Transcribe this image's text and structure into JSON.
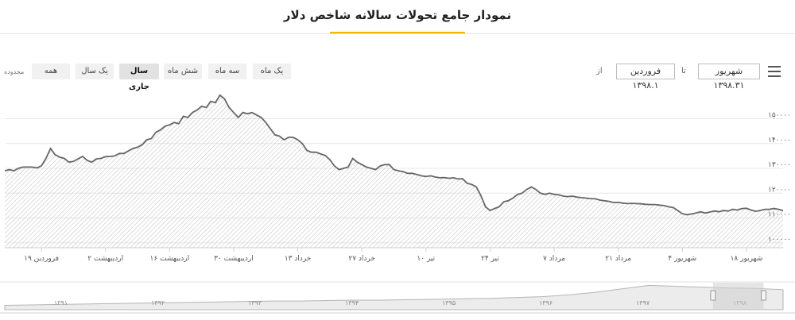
{
  "header": {
    "title": "نمودار جامع تحولات سالانه شاخص دلار"
  },
  "toolbar": {
    "menu_icon": "hamburger-menu-icon",
    "to_date": "شهریور ۱۳۹۸.۳۱",
    "to_sep": "تا",
    "from_date": "فروردین ۱۳۹۸.۱",
    "from_sep": "از",
    "range_label": "محدوده",
    "range_buttons": [
      "یک ماه",
      "سه ماه",
      "شش ماه",
      "سال جاری",
      "یک سال",
      "همه"
    ],
    "active_range": "سال جاری"
  },
  "colors": {
    "line": "#666666",
    "accent": "#f5b400",
    "grid": "#e8e8e8",
    "navigator_mask": "#cfcfcf"
  },
  "chart_data": {
    "type": "area",
    "title": "",
    "xlabel": "",
    "ylabel": "",
    "ylim": [
      98000,
      162000
    ],
    "y_ticks": [
      100000,
      110000,
      120000,
      130000,
      140000,
      150000
    ],
    "y_tick_labels": [
      "۱۰۰۰۰۰",
      "۱۱۰۰۰۰",
      "۱۲۰۰۰۰",
      "۱۳۰۰۰۰",
      "۱۴۰۰۰۰",
      "۱۵۰۰۰۰"
    ],
    "x_tick_labels": [
      "فروردین ۱۹",
      "اردیبهشت ۲",
      "اردیبهشت ۱۶",
      "اردیبهشت ۳۰",
      "خرداد ۱۳",
      "خرداد ۲۷",
      "تیر ۱۰",
      "تیر ۲۴",
      "مرداد ۷",
      "مرداد ۲۱",
      "شهریور ۴",
      "شهریور ۱۸"
    ],
    "x_tick_index": [
      8,
      22,
      36,
      50,
      64,
      78,
      92,
      106,
      120,
      134,
      148,
      162
    ],
    "grid": true,
    "legend": "none",
    "series": [
      {
        "values": [
          129000,
          129500,
          129000,
          130000,
          130500,
          130500,
          130500,
          130200,
          131000,
          134000,
          138000,
          135500,
          134500,
          134000,
          132500,
          132800,
          133800,
          134800,
          133200,
          132500,
          133800,
          134000,
          134700,
          134800,
          135000,
          136000,
          136000,
          137000,
          138000,
          138500,
          139500,
          141500,
          142000,
          144500,
          145500,
          147000,
          147500,
          148500,
          148000,
          151000,
          150500,
          152500,
          153500,
          155000,
          154500,
          157000,
          156500,
          159500,
          158000,
          154500,
          152500,
          150500,
          152500,
          152000,
          152500,
          151500,
          150500,
          148500,
          146000,
          143500,
          143000,
          141500,
          142500,
          142500,
          141500,
          140000,
          137200,
          136500,
          136500,
          135800,
          135200,
          133500,
          131000,
          129500,
          130000,
          130500,
          134000,
          132500,
          131500,
          130500,
          130000,
          129500,
          131000,
          131500,
          131500,
          129500,
          129000,
          128700,
          128000,
          128000,
          127500,
          127000,
          126700,
          127000,
          126500,
          126200,
          126300,
          126000,
          126200,
          125700,
          125800,
          124000,
          123500,
          122500,
          119000,
          114500,
          113000,
          113800,
          114500,
          116500,
          117000,
          118000,
          119500,
          120000,
          121500,
          122500,
          121500,
          120000,
          119500,
          120000,
          119500,
          119300,
          118800,
          118600,
          118800,
          118400,
          118200,
          118000,
          117800,
          117700,
          117200,
          116900,
          116700,
          116200,
          116300,
          116000,
          115800,
          115900,
          115800,
          115700,
          115500,
          115400,
          115400,
          115200,
          115000,
          114500,
          114200,
          113000,
          111700,
          111300,
          111600,
          112000,
          112500,
          112000,
          112400,
          112800,
          112500,
          113000,
          112800,
          113500,
          113200,
          113800,
          113900,
          113200,
          112700,
          113000,
          113500,
          113500,
          113800,
          113500,
          113000
        ]
      }
    ],
    "navigator": {
      "labels": [
        "۱۳۹۱",
        "۱۳۹۲",
        "۱۳۹۳",
        "۱۳۹۴",
        "۱۳۹۵",
        "۱۳۹۶",
        "۱۳۹۷",
        "۱۳۹۸"
      ],
      "values": [
        5,
        5.5,
        6,
        6.5,
        7,
        7.5,
        8,
        8.5,
        9,
        9.5,
        10,
        10,
        10.5,
        11,
        11,
        11.5,
        12,
        12.5,
        13,
        14,
        15,
        17,
        20,
        24,
        28,
        27,
        26,
        25,
        24.5,
        23
      ],
      "selection": [
        0.91,
        0.975
      ]
    }
  }
}
